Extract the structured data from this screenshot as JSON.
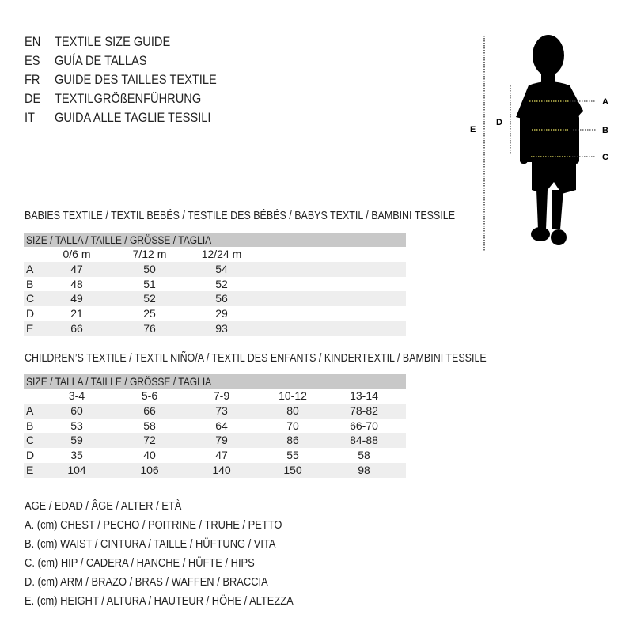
{
  "languages": [
    {
      "code": "EN",
      "text": "TEXTILE SIZE GUIDE"
    },
    {
      "code": "ES",
      "text": "GUÍA DE TALLAS"
    },
    {
      "code": "FR",
      "text": "GUIDE DES TAILLES TEXTILE"
    },
    {
      "code": "DE",
      "text": "TEXTILGRÖßENFÜHRUNG"
    },
    {
      "code": "IT",
      "text": "GUIDA ALLE TAGLIE TESSILI"
    }
  ],
  "figure": {
    "labels": {
      "a": "A",
      "b": "B",
      "c": "C",
      "d": "D",
      "e": "E"
    },
    "measure_line_color": "#e8e060"
  },
  "babies": {
    "title": "BABIES TEXTILE / TEXTIL BEBÉS / TESTILE DES BÉBÉS / BABYS TEXTIL / BAMBINI TESSILE",
    "header": "SIZE / TALLA / TAILLE / GRÖSSE / TAGLIA",
    "columns": [
      "0/6 m",
      "7/12 m",
      "12/24 m"
    ],
    "rows": [
      {
        "label": "A",
        "values": [
          "47",
          "50",
          "54"
        ]
      },
      {
        "label": "B",
        "values": [
          "48",
          "51",
          "52"
        ]
      },
      {
        "label": "C",
        "values": [
          "49",
          "52",
          "56"
        ]
      },
      {
        "label": "D",
        "values": [
          "21",
          "25",
          "29"
        ]
      },
      {
        "label": "E",
        "values": [
          "66",
          "76",
          "93"
        ]
      }
    ]
  },
  "children": {
    "title": "CHILDREN’S TEXTILE / TEXTIL NIÑO/A / TEXTIL DES ENFANTS / KINDERTEXTIL / BAMBINI TESSILE",
    "header": "SIZE / TALLA / TAILLE / GRÖSSE / TAGLIA",
    "columns": [
      "3-4",
      "5-6",
      "7-9",
      "10-12",
      "13-14"
    ],
    "rows": [
      {
        "label": "A",
        "values": [
          "60",
          "66",
          "73",
          "80",
          "78-82"
        ]
      },
      {
        "label": "B",
        "values": [
          "53",
          "58",
          "64",
          "70",
          "66-70"
        ]
      },
      {
        "label": "C",
        "values": [
          "59",
          "72",
          "79",
          "86",
          "84-88"
        ]
      },
      {
        "label": "D",
        "values": [
          "35",
          "40",
          "47",
          "55",
          "58"
        ]
      },
      {
        "label": "E",
        "values": [
          "104",
          "106",
          "140",
          "150",
          "98"
        ]
      }
    ]
  },
  "legend": [
    "AGE / EDAD / ÂGE / ALTER / ETÀ",
    "A. (cm) CHEST / PECHO / POITRINE / TRUHE / PETTO",
    "B. (cm) WAIST / CINTURA / TAILLE / HÜFTUNG / VITA",
    "C. (cm) HIP / CADERA / HANCHE / HÜFTE / HIPS",
    "D. (cm) ARM / BRAZO / BRAS / WAFFEN / BRACCIA",
    "E. (cm) HEIGHT / ALTURA / HAUTEUR / HÖHE / ALTEZZA"
  ]
}
